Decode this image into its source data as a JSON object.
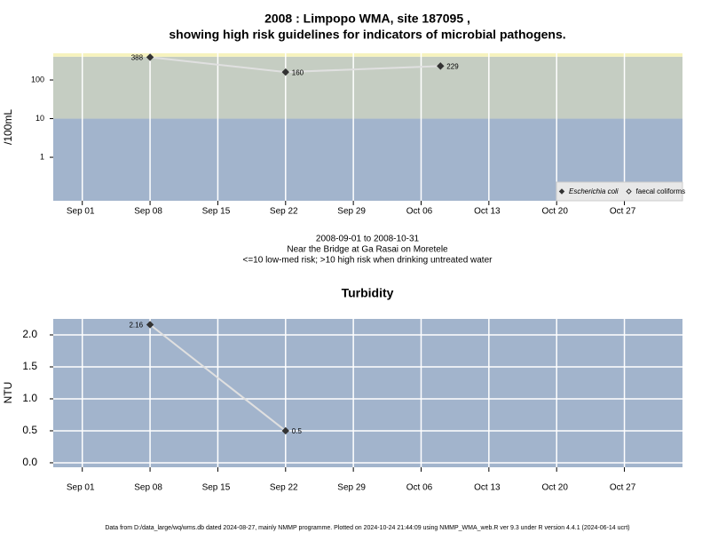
{
  "chart_data": [
    {
      "type": "line",
      "title": [
        "2008 : Limpopo WMA, site 187095 ,",
        "showing high risk guidelines for indicators of microbial pathogens."
      ],
      "ylabel": "/100mL",
      "log_y": true,
      "x": [
        "2008-09-08",
        "2008-09-22",
        "2008-10-08"
      ],
      "series": [
        {
          "name": "Escherichia coli",
          "color": "#333333",
          "line_color": "#e0e0e0",
          "marker": "filled-diamond",
          "values": [
            388,
            160,
            229
          ]
        },
        {
          "name": "faecal coliforms",
          "color": "#333333",
          "line_color": "#e0e0e0",
          "marker": "open-diamond",
          "values": [
            null,
            null,
            null
          ]
        }
      ],
      "bands": [
        {
          "min": 0.075,
          "max": 10,
          "color": "#a2b4cc"
        },
        {
          "min": 10,
          "max": 400,
          "color": "#c5cdc2"
        },
        {
          "min": 400,
          "max": 490,
          "color": "#f6f2bd"
        }
      ],
      "xlim": [
        "2008-08-29",
        "2008-11-02"
      ],
      "xticks": [
        {
          "value": "2008-09-01",
          "label": "Sep 01"
        },
        {
          "value": "2008-09-08",
          "label": "Sep 08"
        },
        {
          "value": "2008-09-15",
          "label": "Sep 15"
        },
        {
          "value": "2008-09-22",
          "label": "Sep 22"
        },
        {
          "value": "2008-09-29",
          "label": "Sep 29"
        },
        {
          "value": "2008-10-06",
          "label": "Oct 06"
        },
        {
          "value": "2008-10-13",
          "label": "Oct 13"
        },
        {
          "value": "2008-10-20",
          "label": "Oct 20"
        },
        {
          "value": "2008-10-27",
          "label": "Oct 27"
        }
      ],
      "ylim": [
        0.075,
        490
      ],
      "yticks": [
        1,
        10,
        100
      ],
      "xgrid": true,
      "ygrid": false,
      "grid_color": "#ffffff",
      "legend": "bottom-right"
    },
    {
      "type": "line",
      "title": [
        "Turbidity"
      ],
      "ylabel": "NTU",
      "log_y": false,
      "x": [
        "2008-09-08",
        "2008-09-22"
      ],
      "series": [
        {
          "name": "Turbidity",
          "color": "#333333",
          "line_color": "#e0e0e0",
          "marker": "filled-diamond",
          "values": [
            2.16,
            0.5
          ]
        }
      ],
      "bands": [
        {
          "min": -0.07,
          "max": 2.25,
          "color": "#a2b4cc"
        }
      ],
      "xlim": [
        "2008-08-29",
        "2008-11-02"
      ],
      "xticks": [
        {
          "value": "2008-09-01",
          "label": "Sep 01"
        },
        {
          "value": "2008-09-08",
          "label": "Sep 08"
        },
        {
          "value": "2008-09-15",
          "label": "Sep 15"
        },
        {
          "value": "2008-09-22",
          "label": "Sep 22"
        },
        {
          "value": "2008-09-29",
          "label": "Sep 29"
        },
        {
          "value": "2008-10-06",
          "label": "Oct 06"
        },
        {
          "value": "2008-10-13",
          "label": "Oct 13"
        },
        {
          "value": "2008-10-20",
          "label": "Oct 20"
        },
        {
          "value": "2008-10-27",
          "label": "Oct 27"
        }
      ],
      "ylim": [
        -0.07,
        2.25
      ],
      "yticks": [
        {
          "value": 0,
          "label": "0.0"
        },
        0.5,
        {
          "value": 1,
          "label": "1.0"
        },
        1.5,
        {
          "value": 2,
          "label": "2.0"
        }
      ],
      "xgrid": true,
      "ygrid": true,
      "grid_color": "#ffffff",
      "legend": null
    }
  ],
  "captions": [
    "2008-09-01 to 2008-10-31",
    "Near the Bridge at Ga Rasai on Moretele",
    "<=10 low-med risk; >10 high risk when drinking untreated water"
  ],
  "footer": "Data from D:/data_large/wq/wms.db dated 2024-08-27, mainly NMMP programme. Plotted on 2024-10-24 21:44:09 using NMMP_WMA_web.R ver 9.3 under R version 4.4.1 (2024-06-14 ucrt)"
}
